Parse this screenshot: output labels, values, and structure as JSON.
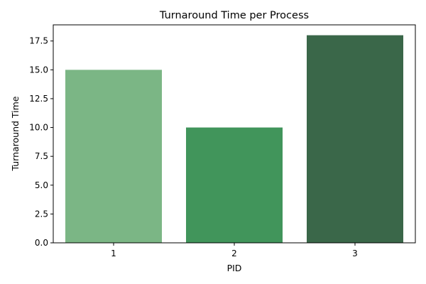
{
  "chart_data": {
    "type": "bar",
    "title": "Turnaround Time per Process",
    "xlabel": "PID",
    "ylabel": "Turnaround Time",
    "categories": [
      "1",
      "2",
      "3"
    ],
    "values": [
      15,
      10,
      18
    ],
    "ylim": [
      0,
      18.9
    ],
    "yticks": [
      "0.0",
      "2.5",
      "5.0",
      "7.5",
      "10.0",
      "12.5",
      "15.0",
      "17.5"
    ],
    "bar_colors": [
      "#7bb685",
      "#41955b",
      "#3a6749"
    ],
    "grid": false,
    "legend": "none"
  }
}
